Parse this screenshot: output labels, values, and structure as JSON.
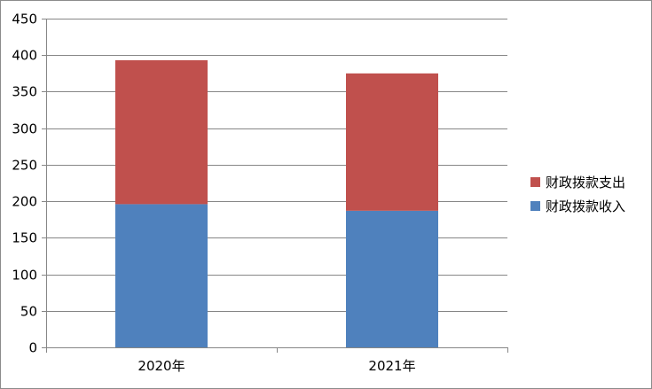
{
  "chart_data": {
    "type": "bar",
    "stacked": true,
    "title": "",
    "xlabel": "",
    "ylabel": "",
    "categories": [
      "2020年",
      "2021年"
    ],
    "series": [
      {
        "name": "财政拨款收入",
        "values": [
          196,
          187
        ],
        "color": "#4f81bd"
      },
      {
        "name": "财政拨款支出",
        "values": [
          197,
          188
        ],
        "color": "#c0504d"
      }
    ],
    "ylim": [
      0,
      450
    ],
    "yticks": [
      0,
      50,
      100,
      150,
      200,
      250,
      300,
      350,
      400,
      450
    ],
    "grid": true,
    "legend_position": "right",
    "legend_order": [
      "财政拨款支出",
      "财政拨款收入"
    ]
  }
}
